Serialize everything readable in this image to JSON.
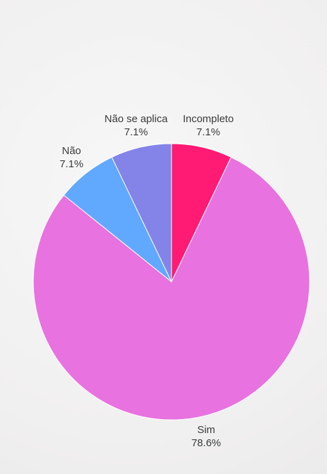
{
  "colors": {
    "incompleto": "#ff1a74",
    "sim": "#e872e0",
    "nao": "#61a8ff",
    "nao_se_aplica": "#8383e8"
  },
  "chart_data": {
    "type": "pie",
    "title": "",
    "slices": [
      {
        "label": "Incompleto",
        "value": 7.1,
        "value_label": "7.1%",
        "color": "#ff1a74"
      },
      {
        "label": "Sim",
        "value": 78.6,
        "value_label": "78.6%",
        "color": "#e872e0"
      },
      {
        "label": "Não",
        "value": 7.1,
        "value_label": "7.1%",
        "color": "#61a8ff"
      },
      {
        "label": "Não se aplica",
        "value": 7.1,
        "value_label": "7.1%",
        "color": "#8383e8"
      }
    ]
  }
}
